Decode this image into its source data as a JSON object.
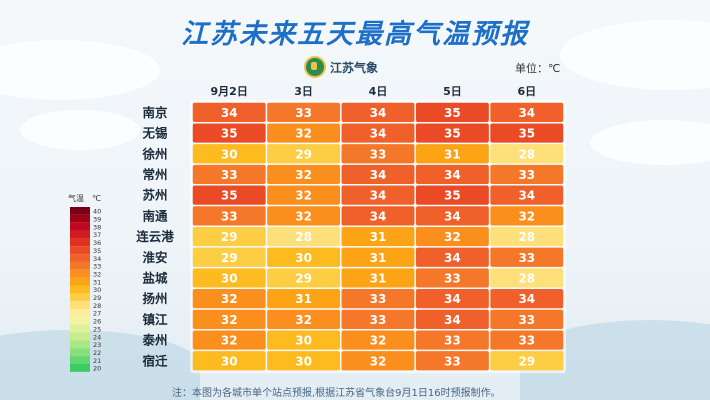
{
  "header": {
    "title": "江苏未来五天最高气温预报",
    "logo_text": "江苏气象",
    "unit": "单位：℃"
  },
  "footer": {
    "note": "注：本图为各城市单个站点预报,根据江苏省气象台9月1日16时预报制作。"
  },
  "chart_data": {
    "type": "heatmap",
    "title": "江苏未来五天最高气温预报",
    "columns": [
      "9月2日",
      "3日",
      "4日",
      "5日",
      "6日"
    ],
    "rows": [
      "南京",
      "无锡",
      "徐州",
      "常州",
      "苏州",
      "南通",
      "连云港",
      "淮安",
      "盐城",
      "扬州",
      "镇江",
      "泰州",
      "宿迁"
    ],
    "values": [
      [
        34,
        33,
        34,
        35,
        34
      ],
      [
        35,
        32,
        34,
        35,
        35
      ],
      [
        30,
        29,
        33,
        31,
        28
      ],
      [
        33,
        32,
        34,
        34,
        33
      ],
      [
        35,
        32,
        34,
        35,
        34
      ],
      [
        33,
        32,
        34,
        34,
        32
      ],
      [
        29,
        28,
        31,
        32,
        28
      ],
      [
        29,
        30,
        31,
        34,
        33
      ],
      [
        30,
        29,
        31,
        33,
        28
      ],
      [
        32,
        31,
        33,
        34,
        34
      ],
      [
        32,
        32,
        33,
        34,
        33
      ],
      [
        32,
        30,
        32,
        33,
        33
      ],
      [
        30,
        30,
        32,
        33,
        29
      ]
    ],
    "legend": {
      "title": "气温",
      "unit": "℃",
      "levels": [
        40,
        39,
        38,
        37,
        36,
        35,
        34,
        33,
        32,
        31,
        30,
        29,
        28,
        27,
        26,
        25,
        24,
        23,
        22,
        21,
        20
      ],
      "colors": [
        "#7a0015",
        "#9e0019",
        "#bd0a1f",
        "#d31a22",
        "#e2301f",
        "#ea4a25",
        "#f0602a",
        "#f5782a",
        "#fb8f1e",
        "#fda416",
        "#fdbb1f",
        "#fdcd44",
        "#fde07a",
        "#fcec9c",
        "#f2f4a0",
        "#dff29a",
        "#c7ee8e",
        "#a9e883",
        "#88e07a",
        "#62d670",
        "#3fcb64"
      ],
      "placement": "left"
    }
  }
}
